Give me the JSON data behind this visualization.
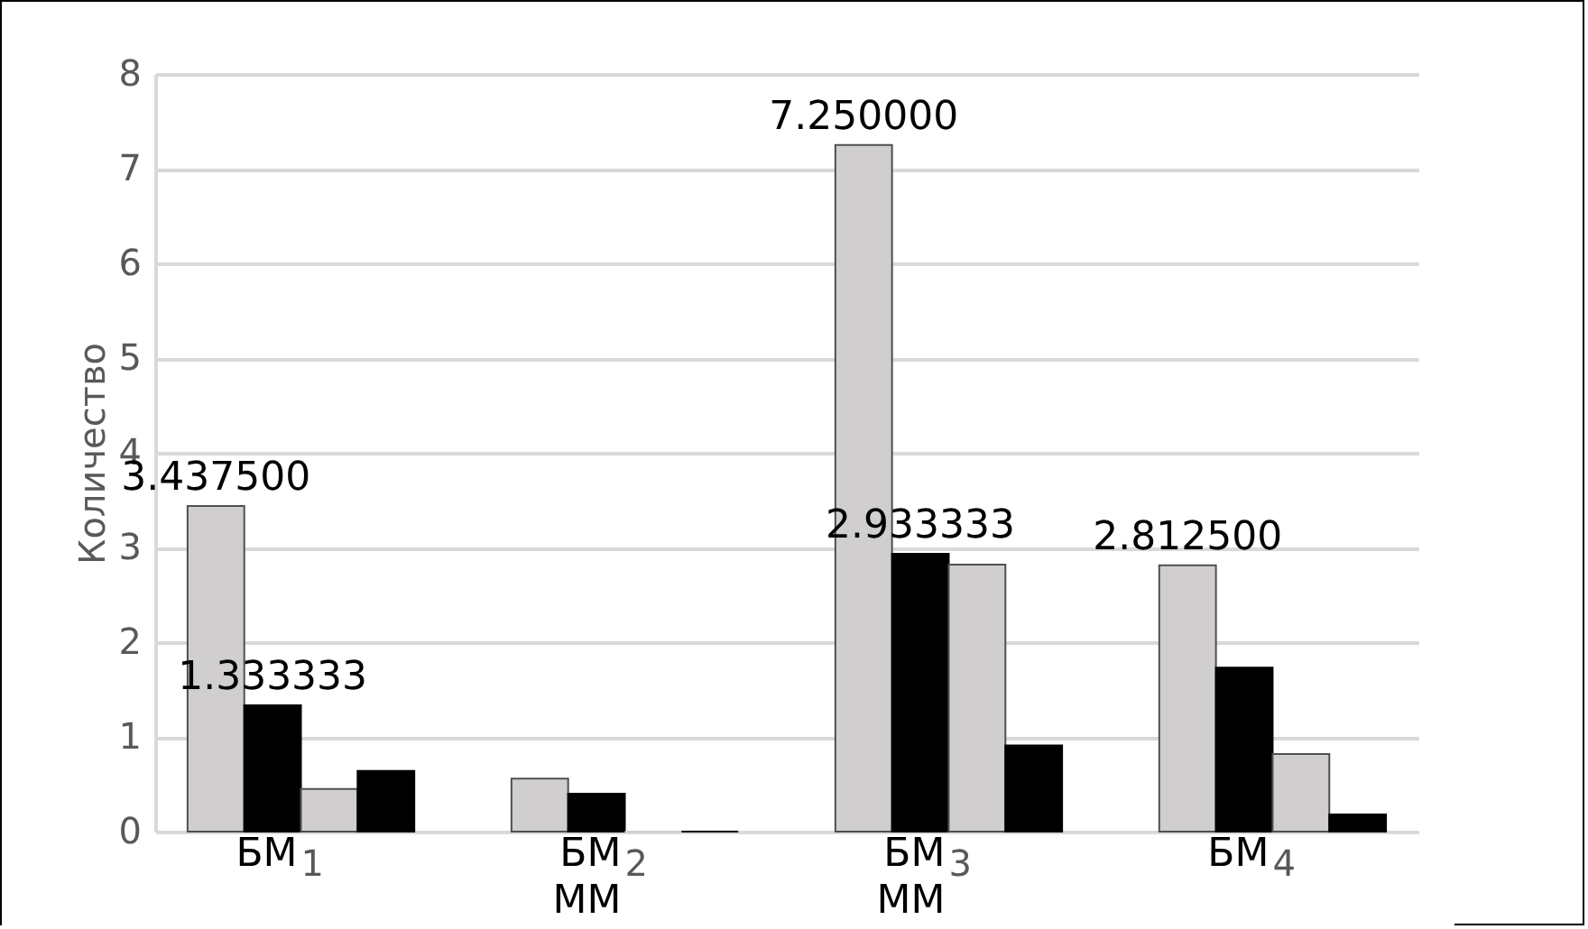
{
  "chart_data": {
    "type": "bar",
    "ylabel": "Количество",
    "categories": [
      "1",
      "2",
      "3",
      "4"
    ],
    "series": [
      {
        "color": "#d0cece",
        "values": [
          3.4375,
          0.56,
          7.25,
          2.8125
        ],
        "value_labels": [
          "3.437500",
          null,
          "7.250000",
          "2.812500"
        ]
      },
      {
        "color": "#000000",
        "values": [
          1.333333,
          0.4,
          2.933333,
          1.73
        ],
        "value_labels": [
          "1.333333",
          null,
          "2.933333",
          null
        ]
      },
      {
        "color": "#d0cece",
        "values": [
          0.45,
          0,
          2.82,
          0.82
        ]
      },
      {
        "color": "#000000",
        "values": [
          0.64,
          0,
          0.91,
          0.18
        ]
      }
    ],
    "ylim": [
      0,
      8
    ],
    "yticks": [
      0,
      1,
      2,
      3,
      4,
      5,
      6,
      7,
      8
    ],
    "grid": "y",
    "annotations": [
      "БМ",
      "БМ",
      "БМ",
      "БМ",
      "ММ",
      "ММ"
    ]
  }
}
